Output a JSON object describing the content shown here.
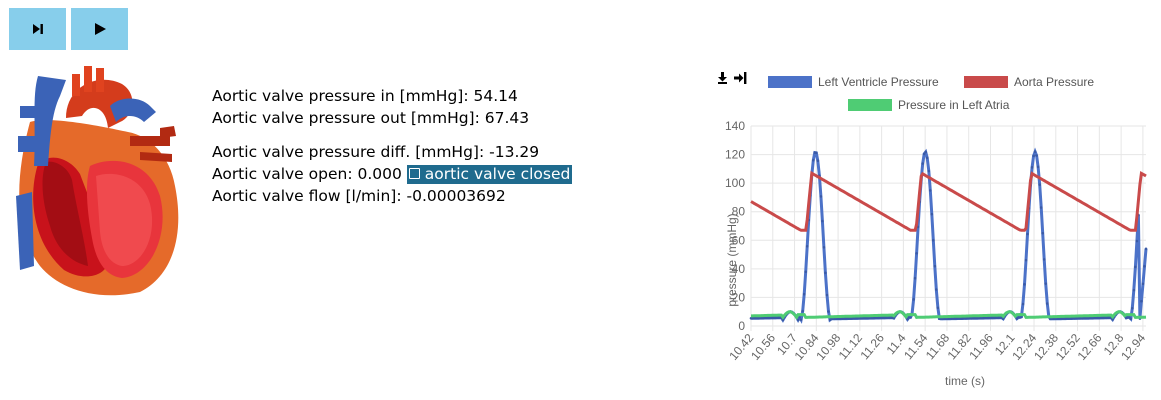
{
  "toolbar": {
    "buttons": [
      {
        "icon": "step-forward-icon"
      },
      {
        "icon": "play-icon"
      }
    ]
  },
  "readout": {
    "pressure_in": "Aortic valve pressure in [mmHg]: 54.14",
    "pressure_out": "Aortic valve pressure out [mmHg]: 67.43",
    "pressure_diff": "Aortic valve pressure diff. [mmHg]: -13.29",
    "open": "Aortic valve open: 0.000",
    "status": "aortic valve closed",
    "flow": "Aortic valve flow [l/min]: -0.00003692"
  },
  "chart_tools": {
    "icons": [
      "download-icon",
      "sign-in-icon"
    ]
  },
  "colors": {
    "button": "#87ceeb",
    "status_badge": "#1f6b8e",
    "left_ventricle": "#4c72c8",
    "aorta": "#c94a4a",
    "left_atria": "#4fcc74"
  },
  "chart_data": {
    "type": "line",
    "xlabel": "time (s)",
    "ylabel": "pressure (mmHg)",
    "ylim": [
      0,
      140
    ],
    "yticks": [
      0,
      20,
      40,
      60,
      80,
      100,
      120,
      140
    ],
    "xlim": [
      10.42,
      12.96
    ],
    "xticks": [
      "10.42",
      "10.56",
      "10.7",
      "10.84",
      "10.98",
      "11.12",
      "11.26",
      "11.4",
      "11.54",
      "11.68",
      "11.82",
      "11.96",
      "12.1",
      "12.24",
      "12.38",
      "12.52",
      "12.66",
      "12.8",
      "12.94"
    ],
    "legend_position": "top",
    "grid": true,
    "series": [
      {
        "name": "Left Ventricle Pressure",
        "color": "#4c72c8"
      },
      {
        "name": "Aorta Pressure",
        "color": "#c94a4a"
      },
      {
        "name": "Pressure in Left Atria",
        "color": "#4fcc74"
      }
    ],
    "cycle": {
      "period": 0.706,
      "first_systole_start": 10.74,
      "lv_peak": 122,
      "lv_peak_offset": 0.07,
      "lv_diastolic": 4,
      "ao_peak": 107,
      "ao_min": 67,
      "la_base": 6,
      "la_peak": 10
    },
    "ends": {
      "lv_end": 54,
      "ao_end": 67
    }
  }
}
